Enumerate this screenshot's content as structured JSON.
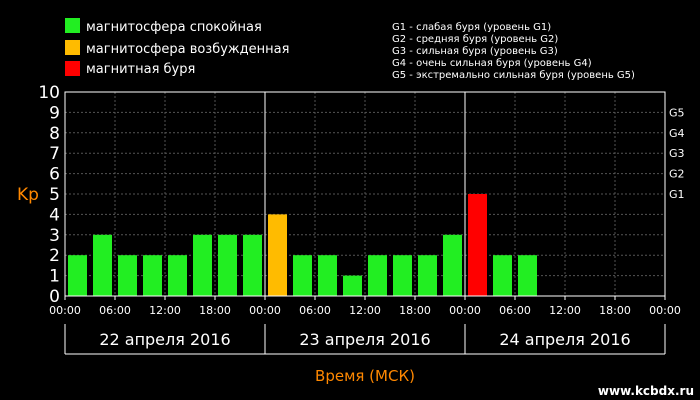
{
  "legend": [
    {
      "label": "магнитосфера спокойная",
      "color": "#22ee22"
    },
    {
      "label": "магнитосфера возбужденная",
      "color": "#ffbb00"
    },
    {
      "label": "магнитная буря",
      "color": "#ff0000"
    }
  ],
  "storm_scale": [
    "G1 - слабая буря (уровень G1)",
    "G2 - средняя буря (уровень G2)",
    "G3 - сильная буря (уровень G3)",
    "G4 - очень сильная буря (уровень G4)",
    "G5 - экстремально сильная буря (уровень G5)"
  ],
  "watermark": "www.kcbdx.ru",
  "chart_data": {
    "type": "bar",
    "ylabel": "Kp",
    "xlabel": "Время (МСК)",
    "ylim": [
      0,
      10
    ],
    "yticks": [
      "0",
      "1",
      "2",
      "3",
      "4",
      "5",
      "6",
      "7",
      "8",
      "9",
      "10"
    ],
    "right_ticks": [
      {
        "label": "G1",
        "kp": 5
      },
      {
        "label": "G2",
        "kp": 6
      },
      {
        "label": "G3",
        "kp": 7
      },
      {
        "label": "G4",
        "kp": 8
      },
      {
        "label": "G5",
        "kp": 9
      }
    ],
    "time_ticks": [
      "00:00",
      "06:00",
      "12:00",
      "18:00",
      "00:00",
      "06:00",
      "12:00",
      "18:00",
      "00:00",
      "06:00",
      "12:00",
      "18:00",
      "00:00"
    ],
    "days": [
      "22 апреля 2016",
      "23 апреля 2016",
      "24 апреля 2016"
    ],
    "slots_per_day": 8,
    "values": [
      2,
      3,
      2,
      2,
      2,
      3,
      3,
      3,
      4,
      2,
      2,
      1,
      2,
      2,
      2,
      3,
      5,
      2,
      2
    ],
    "colors": {
      "quiet": "#22ee22",
      "active": "#ffbb00",
      "storm": "#ff0000"
    },
    "thresholds": {
      "active": 4,
      "storm": 5
    }
  }
}
